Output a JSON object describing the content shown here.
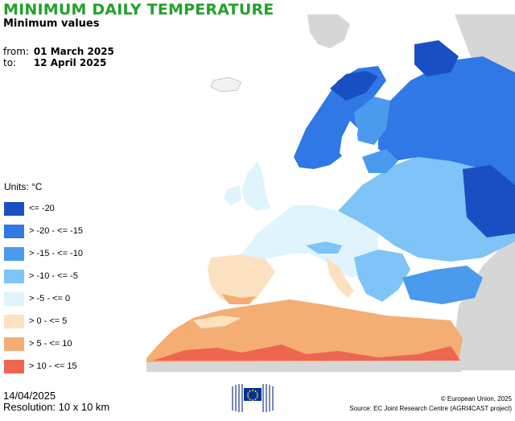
{
  "header": {
    "title": "MINIMUM DAILY TEMPERATURE",
    "subtitle": "Minimum values",
    "from_label": "from:",
    "from_value": "01 March 2025",
    "to_label": "to:",
    "to_value": "12 April 2025"
  },
  "legend": {
    "units": "Units: °C",
    "classes": [
      {
        "label": "<= -20",
        "color": "#1a4fc4"
      },
      {
        "label": "> -20 - <= -15",
        "color": "#2f78e6"
      },
      {
        "label": "> -15 - <= -10",
        "color": "#4a9bee"
      },
      {
        "label": "> -10 - <= -5",
        "color": "#7fc4f7"
      },
      {
        "label": "> -5 - <= 0",
        "color": "#dff4fd"
      },
      {
        "label": "> 0 - <= 5",
        "color": "#fbe1bf"
      },
      {
        "label": "> 5 - <= 10",
        "color": "#f4ad72"
      },
      {
        "label": "> 10 - <= 15",
        "color": "#ee6550"
      }
    ]
  },
  "footer": {
    "date": "14/04/2025",
    "resolution": "Resolution: 10 x 10 km",
    "copyright": "© European Union, 2025",
    "source": "Source: EC Joint Research Centre (AGRI4CAST project)"
  }
}
